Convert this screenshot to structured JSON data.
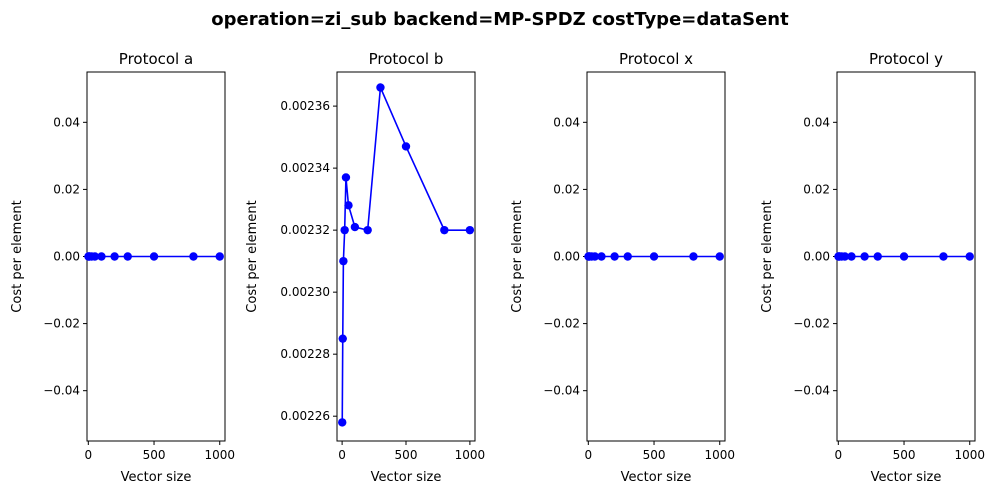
{
  "figure_title": "operation=zi_sub backend=MP-SPDZ costType=dataSent",
  "chart_data": [
    {
      "type": "line",
      "title": "Protocol a",
      "xlabel": "Vector size",
      "ylabel": "Cost per element",
      "xlim": [
        -10,
        1040
      ],
      "ylim": [
        -0.055,
        0.055
      ],
      "xticks": [
        0,
        500,
        1000
      ],
      "xtick_labels": [
        "0",
        "500",
        "1000"
      ],
      "yticks": [
        -0.04,
        -0.02,
        0.0,
        0.02,
        0.04
      ],
      "ytick_labels": [
        "−0.04",
        "−0.02",
        "0.00",
        "0.02",
        "0.04"
      ],
      "grid": false,
      "color": "#0000ff",
      "marker": "circle",
      "x": [
        1,
        5,
        10,
        25,
        50,
        100,
        200,
        300,
        500,
        800,
        1000
      ],
      "y": [
        0,
        0,
        0,
        0,
        0,
        0,
        0,
        0,
        0,
        0,
        0
      ]
    },
    {
      "type": "line",
      "title": "Protocol b",
      "xlabel": "Vector size",
      "ylabel": "Cost per element",
      "xlim": [
        -40,
        1040
      ],
      "ylim": [
        0.002252,
        0.002371
      ],
      "xticks": [
        0,
        500,
        1000
      ],
      "xtick_labels": [
        "0",
        "500",
        "1000"
      ],
      "yticks": [
        0.00226,
        0.00228,
        0.0023,
        0.00232,
        0.00234,
        0.00236
      ],
      "ytick_labels": [
        "0.00226",
        "0.00228",
        "0.00230",
        "0.00232",
        "0.00234",
        "0.00236"
      ],
      "grid": false,
      "color": "#0000ff",
      "marker": "circle",
      "x": [
        1,
        5,
        10,
        20,
        30,
        50,
        100,
        200,
        300,
        500,
        800,
        1000
      ],
      "y": [
        0.002258,
        0.002285,
        0.00231,
        0.00232,
        0.002337,
        0.002328,
        0.002321,
        0.00232,
        0.002366,
        0.002347,
        0.00232,
        0.00232
      ]
    },
    {
      "type": "line",
      "title": "Protocol x",
      "xlabel": "Vector size",
      "ylabel": "Cost per element",
      "xlim": [
        -10,
        1040
      ],
      "ylim": [
        -0.055,
        0.055
      ],
      "xticks": [
        0,
        500,
        1000
      ],
      "xtick_labels": [
        "0",
        "500",
        "1000"
      ],
      "yticks": [
        -0.04,
        -0.02,
        0.0,
        0.02,
        0.04
      ],
      "ytick_labels": [
        "−0.04",
        "−0.02",
        "0.00",
        "0.02",
        "0.04"
      ],
      "grid": false,
      "color": "#0000ff",
      "marker": "circle",
      "x": [
        1,
        5,
        10,
        25,
        50,
        100,
        200,
        300,
        500,
        800,
        1000
      ],
      "y": [
        0,
        0,
        0,
        0,
        0,
        0,
        0,
        0,
        0,
        0,
        0
      ]
    },
    {
      "type": "line",
      "title": "Protocol y",
      "xlabel": "Vector size",
      "ylabel": "Cost per element",
      "xlim": [
        -10,
        1040
      ],
      "ylim": [
        -0.055,
        0.055
      ],
      "xticks": [
        0,
        500,
        1000
      ],
      "xtick_labels": [
        "0",
        "500",
        "1000"
      ],
      "yticks": [
        -0.04,
        -0.02,
        0.0,
        0.02,
        0.04
      ],
      "ytick_labels": [
        "−0.04",
        "−0.02",
        "0.00",
        "0.02",
        "0.04"
      ],
      "grid": false,
      "color": "#0000ff",
      "marker": "circle",
      "x": [
        1,
        5,
        10,
        25,
        50,
        100,
        200,
        300,
        500,
        800,
        1000
      ],
      "y": [
        0,
        0,
        0,
        0,
        0,
        0,
        0,
        0,
        0,
        0,
        0
      ]
    }
  ]
}
